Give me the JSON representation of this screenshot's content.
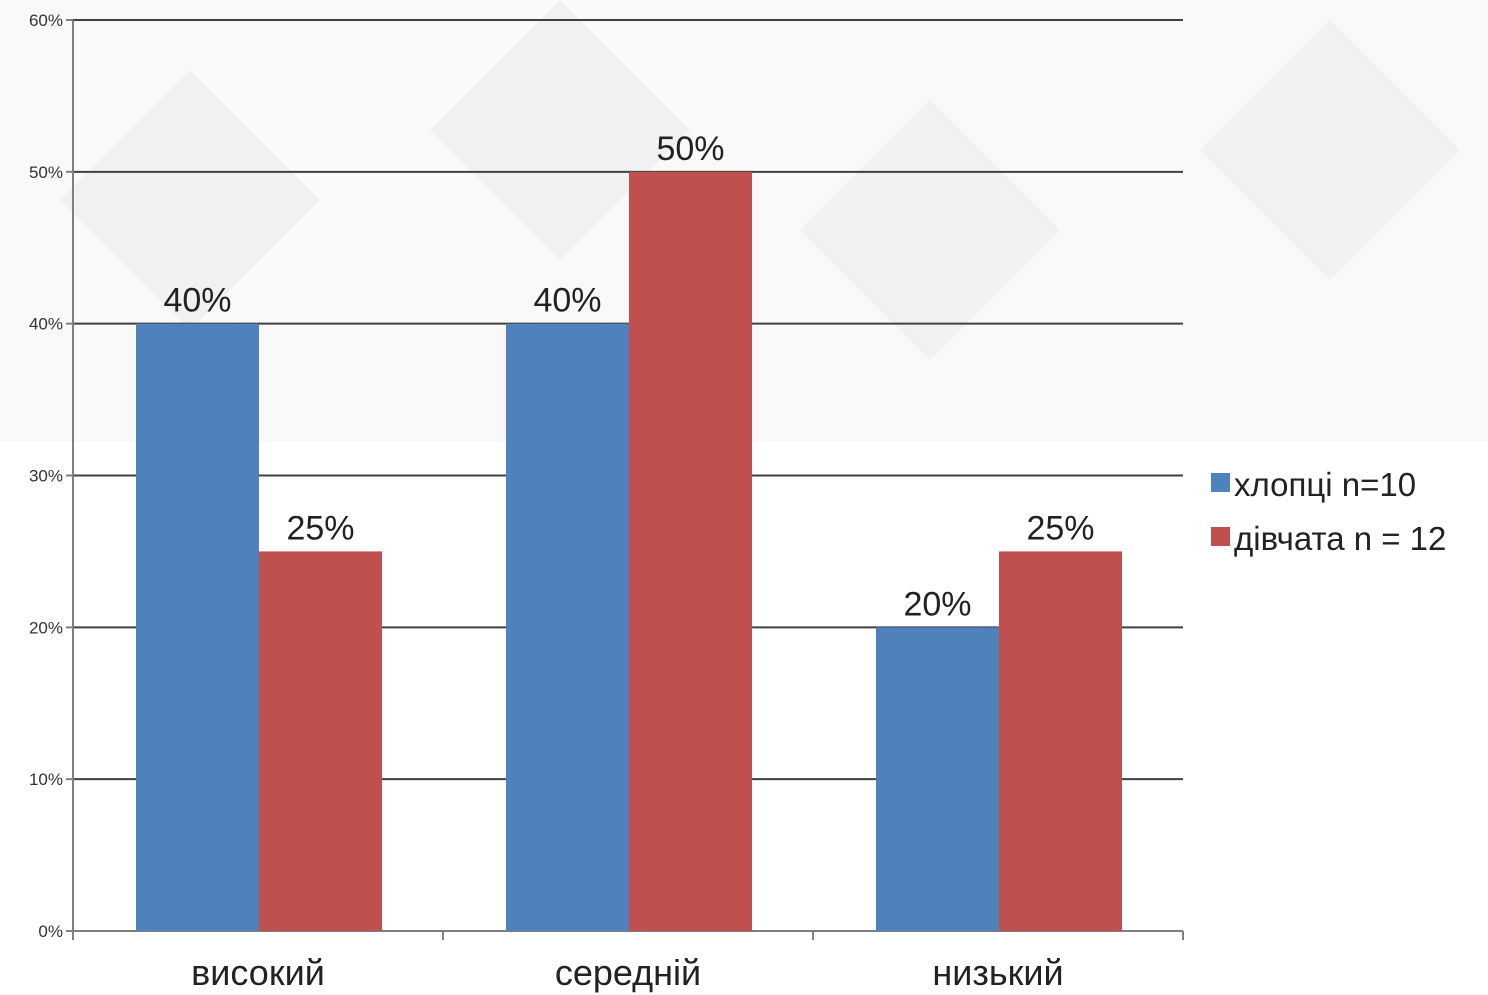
{
  "chart_data": {
    "type": "bar",
    "categories": [
      "високий",
      "середній",
      "низький"
    ],
    "series": [
      {
        "name": "хлопці n=10",
        "color": "#4f81bd",
        "values": [
          40,
          40,
          20
        ],
        "labels": [
          "40%",
          "40%",
          "20%"
        ]
      },
      {
        "name": "дівчата n = 12",
        "color": "#c0504d",
        "values": [
          25,
          50,
          25
        ],
        "labels": [
          "25%",
          "50%",
          "25%"
        ]
      }
    ],
    "ylim": [
      0,
      60
    ],
    "yticks": [
      0,
      10,
      20,
      30,
      40,
      50,
      60
    ],
    "ytick_labels": [
      "0%",
      "10%",
      "20%",
      "30%",
      "40%",
      "50%",
      "60%"
    ],
    "grid": true,
    "legend_position": "right"
  }
}
